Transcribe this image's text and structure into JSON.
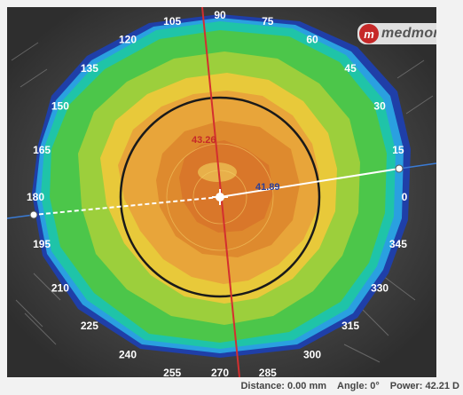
{
  "brand": {
    "logo_letter": "m",
    "name": "medmont"
  },
  "map": {
    "angle_labels": [
      {
        "label": "90",
        "deg": 90
      },
      {
        "label": "75",
        "deg": 75
      },
      {
        "label": "60",
        "deg": 60
      },
      {
        "label": "45",
        "deg": 45
      },
      {
        "label": "30",
        "deg": 30
      },
      {
        "label": "15",
        "deg": 15
      },
      {
        "label": "0",
        "deg": 0
      },
      {
        "label": "345",
        "deg": 345
      },
      {
        "label": "330",
        "deg": 330
      },
      {
        "label": "315",
        "deg": 315
      },
      {
        "label": "300",
        "deg": 300
      },
      {
        "label": "285",
        "deg": 285
      },
      {
        "label": "270",
        "deg": 270
      },
      {
        "label": "255",
        "deg": 255
      },
      {
        "label": "240",
        "deg": 240
      },
      {
        "label": "225",
        "deg": 225
      },
      {
        "label": "210",
        "deg": 210
      },
      {
        "label": "195",
        "deg": 195
      },
      {
        "label": "180",
        "deg": 180
      },
      {
        "label": "165",
        "deg": 165
      },
      {
        "label": "150",
        "deg": 150
      },
      {
        "label": "135",
        "deg": 135
      },
      {
        "label": "120",
        "deg": 120
      },
      {
        "label": "105",
        "deg": 105
      }
    ],
    "steep_meridian_value": "43.26",
    "flat_meridian_value": "41.89",
    "colors": {
      "steep_meridian": "#d32f2f",
      "flat_meridian": "#ffffff",
      "ring": "#1a1a1a"
    }
  },
  "status": {
    "distance_label": "Distance:",
    "distance_value": "0.00 mm",
    "angle_label": "Angle:",
    "angle_value": "0°",
    "power_label": "Power:",
    "power_value": "42.21 D"
  }
}
